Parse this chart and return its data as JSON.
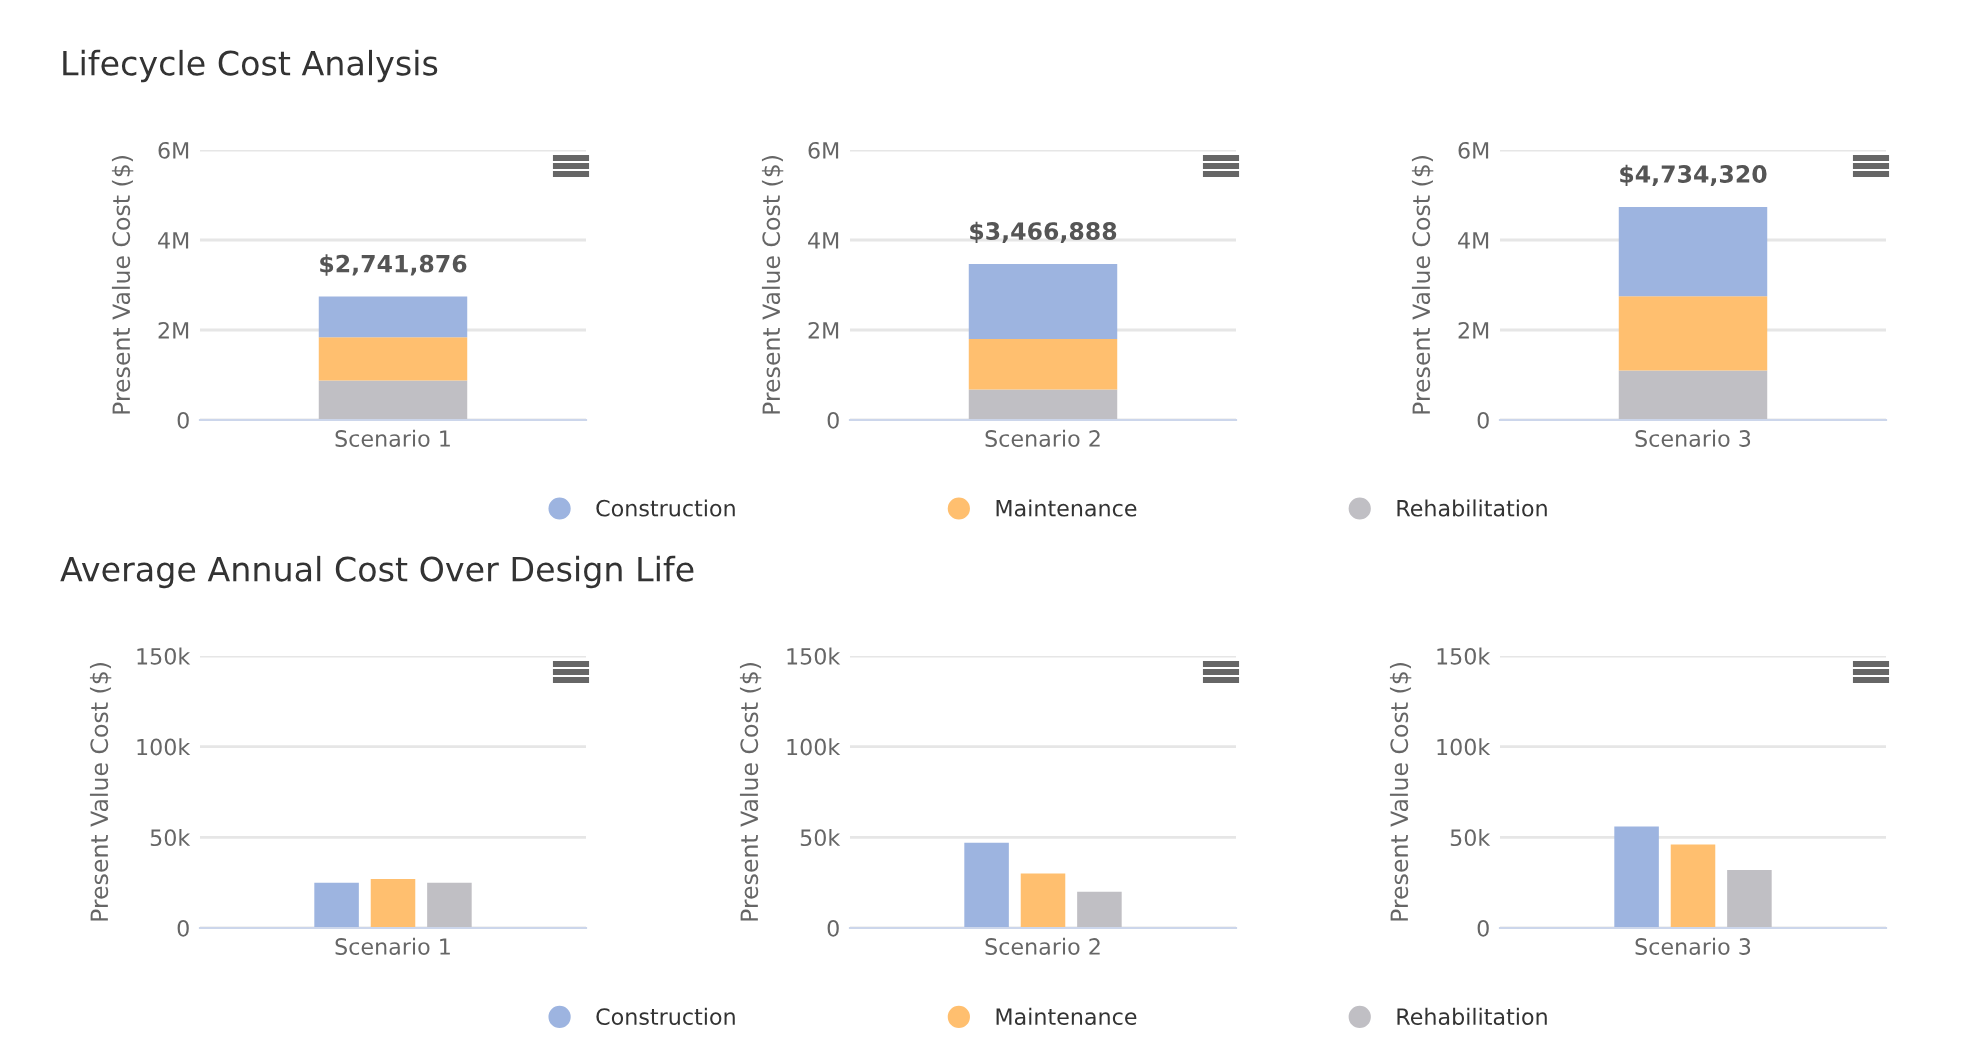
{
  "chart_data": [
    {
      "type": "bar",
      "title": "Lifecycle Cost Analysis",
      "ylabel": "Present Value Cost ($)",
      "categories": [
        "Scenario 1"
      ],
      "stacked": true,
      "ylim": [
        0,
        6000000
      ],
      "yticks": [
        0,
        {
          "value": 2000000,
          "label": "2M"
        },
        {
          "value": 4000000,
          "label": "4M"
        },
        {
          "value": 6000000,
          "label": "6M"
        }
      ],
      "grid": "y",
      "legend": "bottom",
      "totals": [
        "$2,741,876"
      ],
      "series": [
        {
          "name": "Rehabilitation",
          "color": "#c0bfc4",
          "values": [
            880000
          ]
        },
        {
          "name": "Maintenance",
          "color": "#ffbf6f",
          "values": [
            960000
          ]
        },
        {
          "name": "Construction",
          "color": "#9db4e0",
          "values": [
            901876
          ]
        }
      ]
    },
    {
      "type": "bar",
      "ylabel": "Present Value Cost ($)",
      "categories": [
        "Scenario 2"
      ],
      "stacked": true,
      "ylim": [
        0,
        6000000
      ],
      "yticks": [
        0,
        {
          "value": 2000000,
          "label": "2M"
        },
        {
          "value": 4000000,
          "label": "4M"
        },
        {
          "value": 6000000,
          "label": "6M"
        }
      ],
      "grid": "y",
      "legend": "bottom",
      "totals": [
        "$3,466,888"
      ],
      "series": [
        {
          "name": "Rehabilitation",
          "color": "#c0bfc4",
          "values": [
            680000
          ]
        },
        {
          "name": "Maintenance",
          "color": "#ffbf6f",
          "values": [
            1120000
          ]
        },
        {
          "name": "Construction",
          "color": "#9db4e0",
          "values": [
            1666888
          ]
        }
      ]
    },
    {
      "type": "bar",
      "ylabel": "Present Value Cost ($)",
      "categories": [
        "Scenario 3"
      ],
      "stacked": true,
      "ylim": [
        0,
        6000000
      ],
      "yticks": [
        0,
        {
          "value": 2000000,
          "label": "2M"
        },
        {
          "value": 4000000,
          "label": "4M"
        },
        {
          "value": 6000000,
          "label": "6M"
        }
      ],
      "grid": "y",
      "legend": "bottom",
      "totals": [
        "$4,734,320"
      ],
      "series": [
        {
          "name": "Rehabilitation",
          "color": "#c0bfc4",
          "values": [
            1100000
          ]
        },
        {
          "name": "Maintenance",
          "color": "#ffbf6f",
          "values": [
            1650000
          ]
        },
        {
          "name": "Construction",
          "color": "#9db4e0",
          "values": [
            1984320
          ]
        }
      ]
    },
    {
      "type": "bar",
      "title": "Average Annual Cost Over Design Life",
      "ylabel": "Present Value Cost ($)",
      "categories": [
        "Scenario 1"
      ],
      "ylim": [
        0,
        150000
      ],
      "yticks": [
        0,
        {
          "value": 50000,
          "label": "50k"
        },
        {
          "value": 100000,
          "label": "100k"
        },
        {
          "value": 150000,
          "label": "150k"
        }
      ],
      "grid": "y",
      "legend": "bottom",
      "series": [
        {
          "name": "Construction",
          "color": "#9db4e0",
          "values": [
            25000
          ]
        },
        {
          "name": "Maintenance",
          "color": "#ffbf6f",
          "values": [
            27000
          ]
        },
        {
          "name": "Rehabilitation",
          "color": "#c0bfc4",
          "values": [
            25000
          ]
        }
      ]
    },
    {
      "type": "bar",
      "ylabel": "Present Value Cost ($)",
      "categories": [
        "Scenario 2"
      ],
      "ylim": [
        0,
        150000
      ],
      "yticks": [
        0,
        {
          "value": 50000,
          "label": "50k"
        },
        {
          "value": 100000,
          "label": "100k"
        },
        {
          "value": 150000,
          "label": "150k"
        }
      ],
      "grid": "y",
      "legend": "bottom",
      "series": [
        {
          "name": "Construction",
          "color": "#9db4e0",
          "values": [
            47000
          ]
        },
        {
          "name": "Maintenance",
          "color": "#ffbf6f",
          "values": [
            30000
          ]
        },
        {
          "name": "Rehabilitation",
          "color": "#c0bfc4",
          "values": [
            20000
          ]
        }
      ]
    },
    {
      "type": "bar",
      "ylabel": "Present Value Cost ($)",
      "categories": [
        "Scenario 3"
      ],
      "ylim": [
        0,
        150000
      ],
      "yticks": [
        0,
        {
          "value": 50000,
          "label": "50k"
        },
        {
          "value": 100000,
          "label": "100k"
        },
        {
          "value": 150000,
          "label": "150k"
        }
      ],
      "grid": "y",
      "legend": "bottom",
      "series": [
        {
          "name": "Construction",
          "color": "#9db4e0",
          "values": [
            56000
          ]
        },
        {
          "name": "Maintenance",
          "color": "#ffbf6f",
          "values": [
            46000
          ]
        },
        {
          "name": "Rehabilitation",
          "color": "#c0bfc4",
          "values": [
            32000
          ]
        }
      ]
    }
  ]
}
